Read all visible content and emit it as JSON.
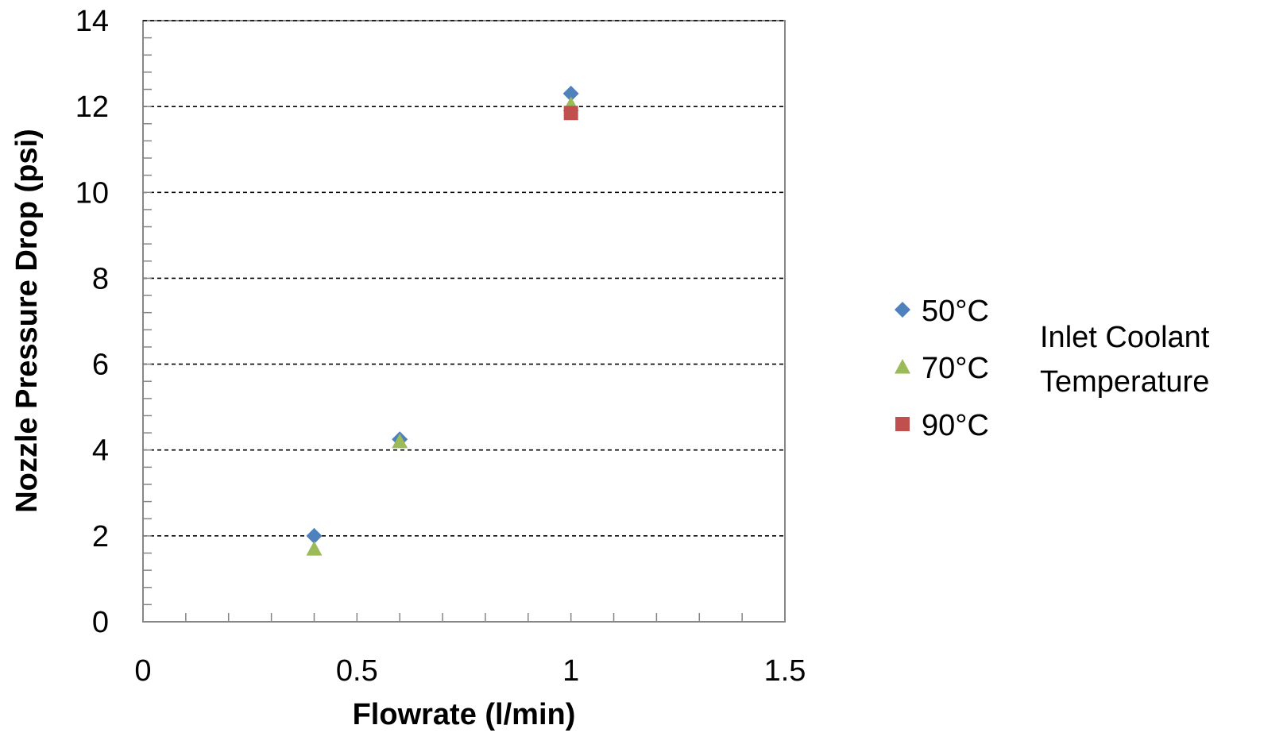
{
  "chart_data": {
    "type": "scatter",
    "title": "",
    "xlabel": "Flowrate (l/min)",
    "ylabel": "Nozzle Pressure Drop (psi)",
    "xlim": [
      0,
      1.5
    ],
    "ylim": [
      0,
      14
    ],
    "x_ticks": [
      "0",
      "0.5",
      "1",
      "1.5"
    ],
    "y_ticks": [
      "0",
      "2",
      "4",
      "6",
      "8",
      "10",
      "12",
      "14"
    ],
    "x_tick_values": [
      0,
      0.5,
      1,
      1.5
    ],
    "y_tick_values": [
      0,
      2,
      4,
      6,
      8,
      10,
      12,
      14
    ],
    "grid": "horizontal dashed",
    "legend_placement": "right",
    "legend_title": [
      "Inlet Coolant",
      "Temperature"
    ],
    "series": [
      {
        "name": "50°C",
        "marker": "diamond",
        "color": "#4f81bd",
        "points": [
          {
            "x": 0.4,
            "y": 2.0
          },
          {
            "x": 0.6,
            "y": 4.25
          },
          {
            "x": 1.0,
            "y": 12.3
          }
        ]
      },
      {
        "name": "70°C",
        "marker": "triangle",
        "color": "#9bbb59",
        "points": [
          {
            "x": 0.4,
            "y": 1.7
          },
          {
            "x": 0.6,
            "y": 4.2
          },
          {
            "x": 1.0,
            "y": 12.05
          }
        ]
      },
      {
        "name": "90°C",
        "marker": "square",
        "color": "#c0504d",
        "points": [
          {
            "x": 1.0,
            "y": 11.85
          }
        ]
      }
    ]
  }
}
